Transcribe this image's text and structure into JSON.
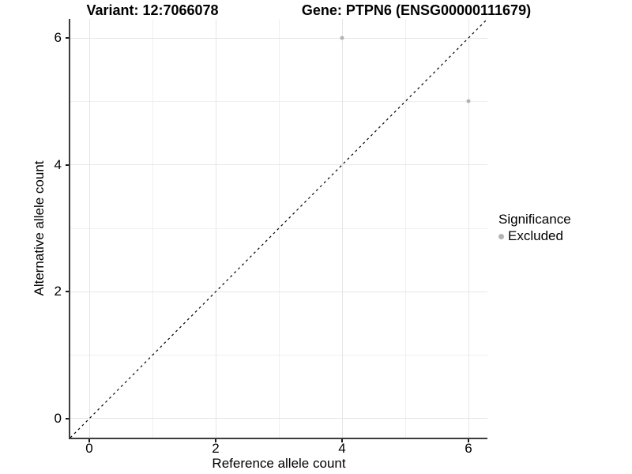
{
  "chart_data": {
    "type": "scatter",
    "titles": [
      "Variant: 12:7066078",
      "Gene: PTPN6 (ENSG00000111679)"
    ],
    "xlabel": "Reference allele count",
    "ylabel": "Alternative allele count",
    "xlim": [
      -0.3,
      6.3
    ],
    "ylim": [
      -0.3,
      6.3
    ],
    "x_ticks": [
      0,
      2,
      4,
      6
    ],
    "y_ticks": [
      0,
      2,
      4,
      6
    ],
    "x_minor_ticks": [
      1,
      3,
      5
    ],
    "y_minor_ticks": [
      1,
      3,
      5
    ],
    "grid": "major+minor",
    "identity_line": {
      "type": "abline",
      "slope": 1,
      "intercept": 0,
      "style": "dashed",
      "color": "#000000"
    },
    "series": [
      {
        "name": "Excluded",
        "color": "#b3b3b3",
        "points": [
          [
            4,
            6
          ],
          [
            6,
            5
          ]
        ]
      }
    ],
    "legend": {
      "title": "Significance",
      "position": "right",
      "entries": [
        {
          "label": "Excluded",
          "color": "#b3b3b3"
        }
      ]
    },
    "colors": {
      "background": "#ffffff",
      "grid_major": "#e6e6e6",
      "grid_minor": "#f0f0f0",
      "axis_line": "#3c3c3c",
      "tick_text": "#000000"
    }
  }
}
